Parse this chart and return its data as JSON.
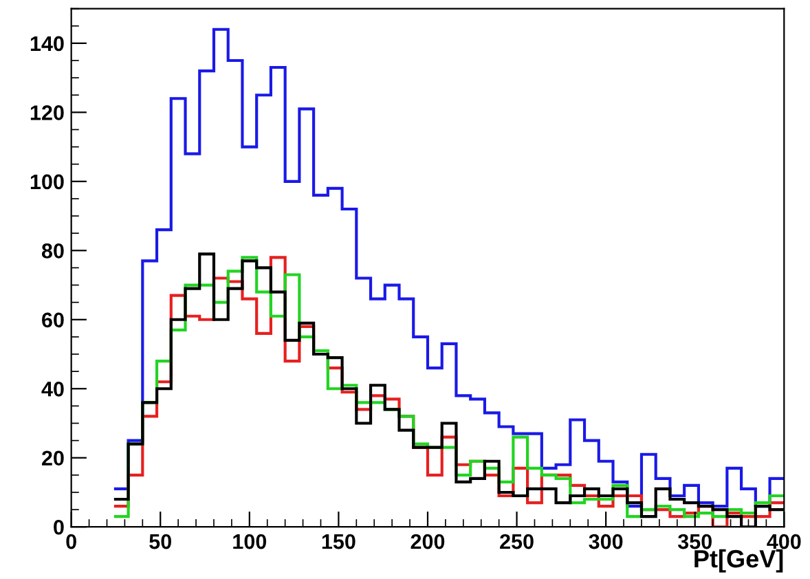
{
  "chart_data": {
    "type": "histogram",
    "xlabel": "Pt[GeV]",
    "bins": [
      24,
      32,
      40,
      48,
      56,
      64,
      72,
      80,
      88,
      96,
      104,
      112,
      120,
      128,
      136,
      144,
      152,
      160,
      168,
      176,
      184,
      192,
      200,
      208,
      216,
      224,
      232,
      240,
      248,
      256,
      264,
      272,
      280,
      288,
      296,
      304,
      312,
      320,
      328,
      336,
      344,
      352,
      360,
      368,
      376,
      384,
      392,
      400
    ],
    "series": [
      {
        "color": "#1a1ae6",
        "values": [
          11,
          25,
          77,
          86,
          124,
          108,
          132,
          144,
          135,
          110,
          125,
          133,
          100,
          121,
          96,
          98,
          92,
          72,
          66,
          70,
          66,
          55,
          46,
          53,
          38,
          37,
          33,
          29,
          27,
          27,
          17,
          18,
          31,
          25,
          19,
          13,
          6,
          21,
          14,
          9,
          12,
          7,
          6,
          17,
          11,
          6,
          14
        ]
      },
      {
        "color": "#e62020",
        "values": [
          6,
          15,
          32,
          42,
          67,
          61,
          60,
          72,
          71,
          66,
          56,
          78,
          48,
          58,
          50,
          46,
          39,
          34,
          38,
          37,
          32,
          23,
          15,
          26,
          18,
          19,
          15,
          9,
          17,
          7,
          15,
          15,
          12,
          9,
          6,
          9,
          9,
          5,
          5,
          3,
          4,
          6,
          0,
          4,
          3,
          3,
          7
        ]
      },
      {
        "color": "#22d422",
        "values": [
          3,
          24,
          36,
          48,
          57,
          70,
          70,
          65,
          74,
          78,
          68,
          61,
          73,
          55,
          51,
          40,
          41,
          36,
          36,
          34,
          32,
          24,
          23,
          23,
          15,
          19,
          17,
          13,
          26,
          17,
          15,
          14,
          7,
          8,
          8,
          12,
          3,
          5,
          6,
          5,
          3,
          4,
          3,
          5,
          4,
          7,
          9
        ]
      },
      {
        "color": "#000000",
        "values": [
          8,
          24,
          36,
          40,
          60,
          69,
          79,
          60,
          69,
          77,
          75,
          68,
          54,
          59,
          50,
          49,
          40,
          30,
          41,
          34,
          28,
          23,
          23,
          30,
          13,
          14,
          19,
          10,
          9,
          11,
          11,
          7,
          9,
          11,
          9,
          11,
          7,
          3,
          11,
          8,
          7,
          6,
          5,
          3,
          0,
          6,
          5
        ]
      }
    ],
    "xlim": [
      0,
      400
    ],
    "ylim": [
      0,
      150
    ],
    "xticks": [
      0,
      50,
      100,
      150,
      200,
      250,
      300,
      350,
      400
    ],
    "yticks": [
      0,
      20,
      40,
      60,
      80,
      100,
      120,
      140
    ],
    "grid": false,
    "legend": false
  }
}
